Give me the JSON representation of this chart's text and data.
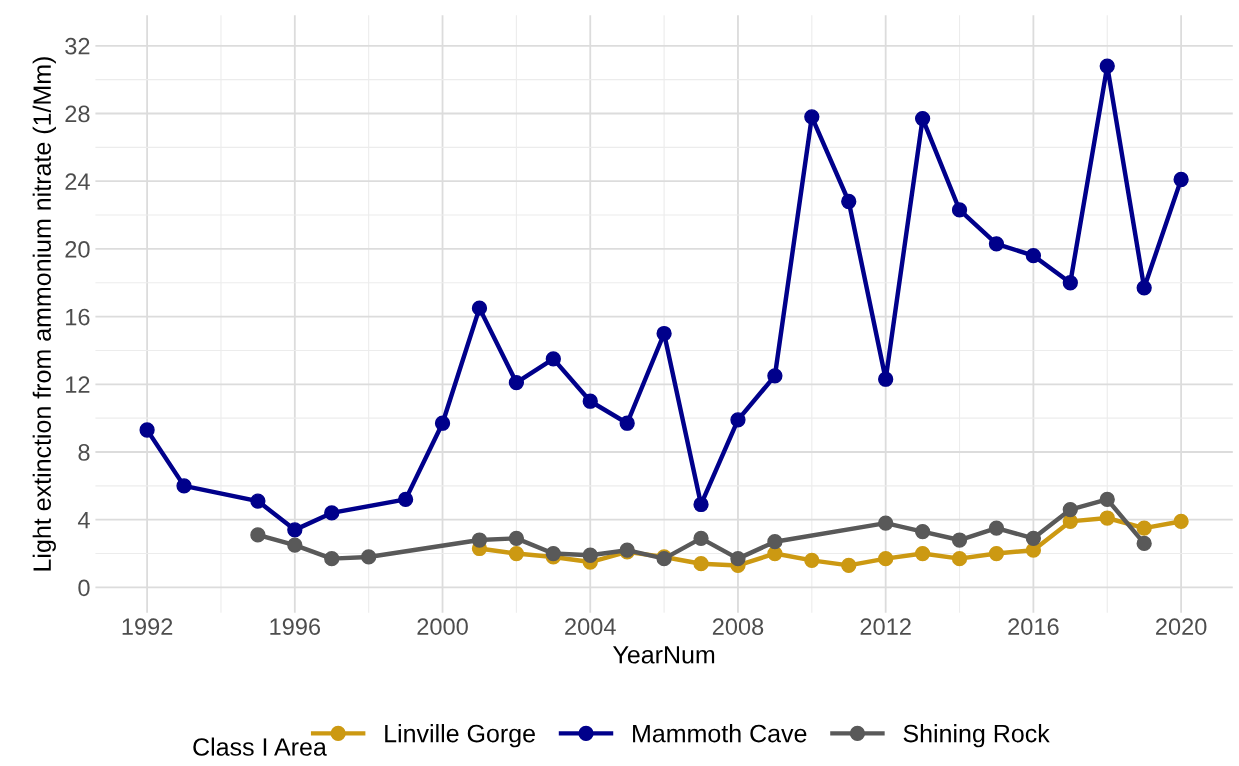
{
  "chart_data": {
    "type": "line",
    "xlabel": "YearNum",
    "ylabel": "Light extinction from ammonium nitrate (1/Mm)",
    "legend_title": "Class I Area",
    "legend": "bottom",
    "grid": true,
    "marker": "circle",
    "line_style": "solid",
    "xlim": [
      1990.6,
      2021.4
    ],
    "xticks": [
      1992,
      1996,
      2000,
      2004,
      2008,
      2012,
      2016,
      2020
    ],
    "ylim": [
      -1.5,
      33.8
    ],
    "yticks": [
      0,
      4,
      8,
      12,
      16,
      20,
      24,
      28,
      32
    ],
    "series": [
      {
        "name": "Linville Gorge",
        "color": "#cc9912",
        "x": [
          2001,
          2002,
          2003,
          2004,
          2005,
          2006,
          2007,
          2008,
          2009,
          2010,
          2011,
          2012,
          2013,
          2014,
          2015,
          2016,
          2017,
          2018,
          2019,
          2020
        ],
        "values": [
          2.3,
          2.0,
          1.8,
          1.5,
          2.1,
          1.8,
          1.4,
          1.3,
          2.0,
          1.6,
          1.3,
          1.7,
          2.0,
          1.7,
          2.0,
          2.2,
          3.9,
          4.1,
          3.5,
          3.9
        ]
      },
      {
        "name": "Mammoth Cave",
        "color": "#00008b",
        "x": [
          1992,
          1993,
          1995,
          1996,
          1997,
          1999,
          2000,
          2001,
          2002,
          2003,
          2004,
          2005,
          2006,
          2007,
          2008,
          2009,
          2010,
          2011,
          2012,
          2013,
          2014,
          2015,
          2016,
          2017,
          2018,
          2019,
          2020
        ],
        "values": [
          9.3,
          6.0,
          5.1,
          3.4,
          4.4,
          5.2,
          9.7,
          16.5,
          12.1,
          13.5,
          11.0,
          9.7,
          15.0,
          4.9,
          9.9,
          12.5,
          27.8,
          22.8,
          12.3,
          27.7,
          22.3,
          20.3,
          19.6,
          18.0,
          30.8,
          17.7,
          24.1
        ]
      },
      {
        "name": "Shining Rock",
        "color": "#595959",
        "x": [
          1995,
          1996,
          1997,
          1998,
          2001,
          2002,
          2003,
          2004,
          2005,
          2006,
          2007,
          2008,
          2009,
          2012,
          2013,
          2014,
          2015,
          2016,
          2017,
          2018,
          2019
        ],
        "values": [
          3.1,
          2.5,
          1.7,
          1.8,
          2.8,
          2.9,
          2.0,
          1.9,
          2.2,
          1.7,
          2.9,
          1.7,
          2.7,
          3.8,
          3.3,
          2.8,
          3.5,
          2.9,
          4.6,
          5.2,
          2.6
        ]
      }
    ]
  }
}
